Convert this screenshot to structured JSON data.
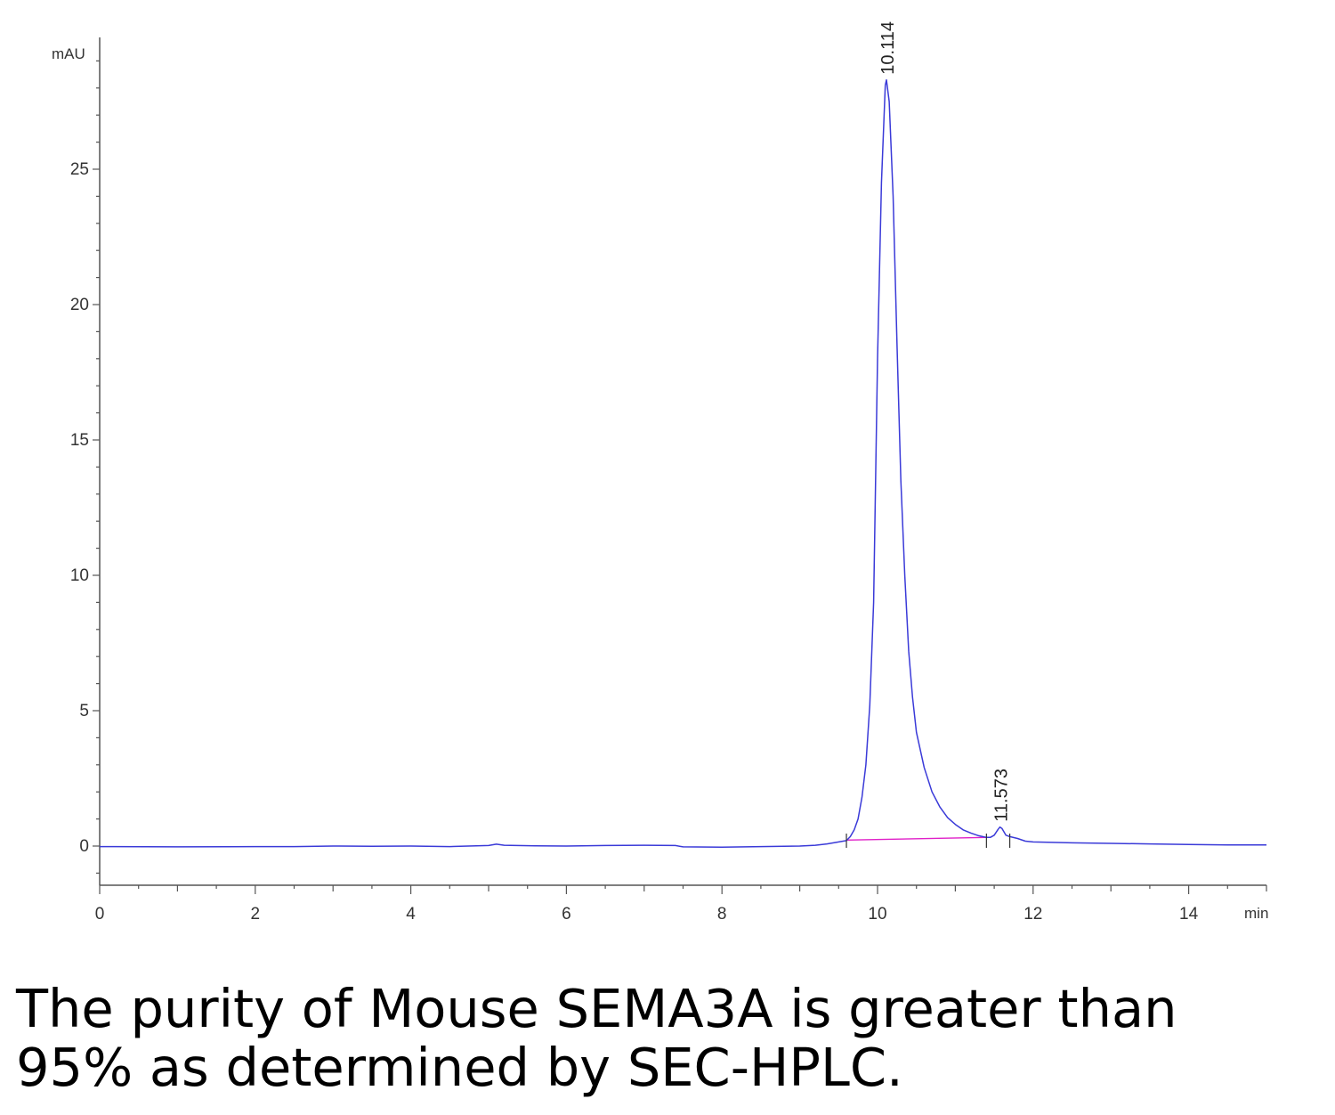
{
  "chart_data": {
    "type": "line",
    "title": "",
    "xlabel": "min",
    "ylabel": "mAU",
    "xlim": [
      0,
      15
    ],
    "ylim": [
      -1.5,
      29.5
    ],
    "x_ticks": [
      0,
      2,
      4,
      6,
      8,
      10,
      12,
      14
    ],
    "y_ticks": [
      0,
      5,
      10,
      15,
      20,
      25
    ],
    "grid": false,
    "legend": "none",
    "series": [
      {
        "points": [
          [
            0,
            -0.02
          ],
          [
            1,
            -0.03
          ],
          [
            2,
            -0.02
          ],
          [
            2.5,
            -0.02
          ],
          [
            3,
            0.0
          ],
          [
            3.5,
            -0.01
          ],
          [
            4,
            0.0
          ],
          [
            4.5,
            -0.02
          ],
          [
            5,
            0.02
          ],
          [
            5.1,
            0.07
          ],
          [
            5.2,
            0.03
          ],
          [
            5.6,
            0.01
          ],
          [
            6,
            0.0
          ],
          [
            6.5,
            0.02
          ],
          [
            7,
            0.03
          ],
          [
            7.4,
            0.02
          ],
          [
            7.5,
            -0.03
          ],
          [
            8,
            -0.04
          ],
          [
            8.5,
            -0.02
          ],
          [
            9,
            0.0
          ],
          [
            9.2,
            0.03
          ],
          [
            9.35,
            0.08
          ],
          [
            9.5,
            0.15
          ],
          [
            9.6,
            0.2
          ],
          [
            9.65,
            0.35
          ],
          [
            9.7,
            0.6
          ],
          [
            9.75,
            1.0
          ],
          [
            9.8,
            1.8
          ],
          [
            9.85,
            3.0
          ],
          [
            9.9,
            5.2
          ],
          [
            9.95,
            9.0
          ],
          [
            10.0,
            18.0
          ],
          [
            10.05,
            24.5
          ],
          [
            10.1,
            28.1
          ],
          [
            10.114,
            28.3
          ],
          [
            10.15,
            27.5
          ],
          [
            10.2,
            24.0
          ],
          [
            10.25,
            18.5
          ],
          [
            10.3,
            13.5
          ],
          [
            10.35,
            10.0
          ],
          [
            10.4,
            7.2
          ],
          [
            10.45,
            5.5
          ],
          [
            10.5,
            4.2
          ],
          [
            10.6,
            2.9
          ],
          [
            10.7,
            2.0
          ],
          [
            10.8,
            1.45
          ],
          [
            10.9,
            1.05
          ],
          [
            11.0,
            0.8
          ],
          [
            11.1,
            0.6
          ],
          [
            11.2,
            0.48
          ],
          [
            11.3,
            0.38
          ],
          [
            11.4,
            0.32
          ],
          [
            11.45,
            0.32
          ],
          [
            11.5,
            0.4
          ],
          [
            11.55,
            0.62
          ],
          [
            11.573,
            0.7
          ],
          [
            11.6,
            0.65
          ],
          [
            11.65,
            0.4
          ],
          [
            11.7,
            0.35
          ],
          [
            11.8,
            0.28
          ],
          [
            11.9,
            0.18
          ],
          [
            12,
            0.15
          ],
          [
            12.5,
            0.12
          ],
          [
            13,
            0.1
          ],
          [
            13.5,
            0.08
          ],
          [
            14,
            0.06
          ],
          [
            14.5,
            0.04
          ],
          [
            15,
            0.04
          ]
        ],
        "color": "#3a3ad8"
      }
    ],
    "baseline": {
      "points": [
        [
          9.6,
          0.22
        ],
        [
          11.4,
          0.32
        ]
      ],
      "color": "#e020c8"
    },
    "peak_labels": [
      {
        "text": "10.114",
        "x": 10.114,
        "y": 28.3
      },
      {
        "text": "11.573",
        "x": 11.573,
        "y": 0.7
      }
    ],
    "integration_marks": [
      9.6,
      11.4,
      11.7
    ]
  },
  "caption": {
    "line1": "The purity of Mouse SEMA3A is greater than",
    "line2": "95% as determined by SEC-HPLC."
  }
}
